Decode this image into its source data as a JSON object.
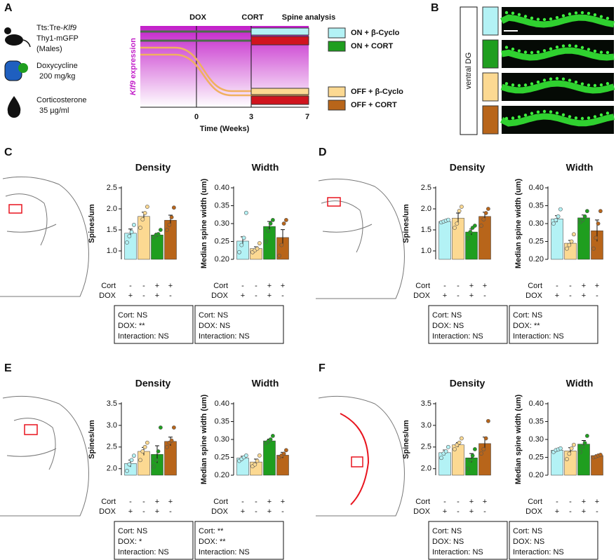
{
  "panels": [
    "A",
    "B",
    "C",
    "D",
    "E",
    "F"
  ],
  "panel_a": {
    "mouse": [
      "Tts:Tre-",
      "Klf9",
      "Thy1-mGFP",
      "(Males)"
    ],
    "doxycycline": [
      "Doxycycline",
      "200 mg/kg"
    ],
    "corticosterone": [
      "Corticosterone",
      "35 µg/ml"
    ],
    "phases": [
      {
        "text": "DOX",
        "color": "#1fb36a"
      },
      {
        "text": "CORT",
        "color": "#e8141e"
      },
      {
        "text": "Spine analysis",
        "color": "#999999"
      }
    ],
    "ylabel": [
      "Klf9",
      " expression"
    ],
    "xticks": [
      0,
      3,
      7
    ],
    "xlabel": "Time (Weeks)",
    "legend": [
      {
        "text": "ON + β-Cyclo",
        "color": "#b3f2f5"
      },
      {
        "text": "ON + CORT",
        "color": "#1f9e1f"
      },
      {
        "text": "OFF + β-Cyclo",
        "color": "#fcd992"
      },
      {
        "text": "OFF + CORT",
        "color": "#b8651a"
      }
    ]
  },
  "panel_b": {
    "label": "ventral DG"
  },
  "chart_data": [
    {
      "type": "bar",
      "title": "Density",
      "ylabel": "Spines/um",
      "ylim": [
        0.8,
        2.5
      ],
      "yticks": [
        {
          "value": 1,
          "label": "1.0"
        },
        1.5,
        {
          "value": 2,
          "label": "2.0"
        },
        2.5
      ],
      "colors": [
        "#b3f2f5",
        "#fcd992",
        "#1f9e1f",
        "#b8651a"
      ],
      "values": [
        1.42,
        1.82,
        1.38,
        1.73
      ],
      "errors": [
        0.1,
        0.1,
        0.04,
        0.12
      ],
      "points": [
        [
          1.2,
          1.35,
          1.45,
          1.62
        ],
        [
          1.55,
          1.75,
          1.9,
          2.05
        ],
        [
          1.33,
          1.38,
          1.4,
          1.5
        ],
        [
          1.5,
          1.62,
          1.8,
          2.03
        ]
      ],
      "rows": [
        {
          "label": "Cort",
          "marks": [
            "-",
            "-",
            "+",
            "+"
          ]
        },
        {
          "label": "DOX",
          "marks": [
            "+",
            "-",
            "+",
            "-"
          ]
        }
      ],
      "stats": [
        "Cort: NS",
        "DOX: **",
        "Interaction: NS"
      ],
      "stats_color": "#111111"
    },
    {
      "type": "bar",
      "title": "Width",
      "ylabel": "Median spine width (um)",
      "ylim": [
        0.2,
        0.4
      ],
      "yticks": [
        {
          "value": 0.2,
          "label": "0.20"
        },
        0.25,
        {
          "value": 0.3,
          "label": "0.30"
        },
        0.35,
        {
          "value": 0.4,
          "label": "0.40"
        }
      ],
      "colors": [
        "#b3f2f5",
        "#fcd992",
        "#1f9e1f",
        "#b8651a"
      ],
      "values": [
        0.251,
        0.23,
        0.292,
        0.261
      ],
      "errors": [
        0.012,
        0.005,
        0.014,
        0.022
      ],
      "points": [
        [
          0.22,
          0.24,
          0.26,
          0.33
        ],
        [
          0.22,
          0.225,
          0.23,
          0.245
        ],
        [
          0.25,
          0.28,
          0.3,
          0.31
        ],
        [
          0.21,
          0.24,
          0.3,
          0.31
        ]
      ],
      "rows": [
        {
          "label": "Cort",
          "marks": [
            "-",
            "-",
            "+",
            "+"
          ]
        },
        {
          "label": "DOX",
          "marks": [
            "+",
            "-",
            "+",
            "-"
          ]
        }
      ],
      "stats": [
        "Cort: NS",
        "DOX: NS",
        "Interaction: NS"
      ],
      "stats_color": "#111111"
    },
    {
      "type": "bar",
      "title": "Density",
      "ylabel": "Spines/um",
      "ylim": [
        0.8,
        2.5
      ],
      "yticks": [
        {
          "value": 1,
          "label": "1.0"
        },
        1.5,
        {
          "value": 2,
          "label": "2.0"
        },
        2.5
      ],
      "colors": [
        "#b3f2f5",
        "#fcd992",
        "#1f9e1f",
        "#b8651a"
      ],
      "values": [
        1.7,
        1.78,
        1.45,
        1.82
      ],
      "errors": [
        0.02,
        0.12,
        0.07,
        0.1
      ],
      "points": [
        [
          1.68,
          1.7,
          1.72,
          1.74
        ],
        [
          1.55,
          1.65,
          1.95,
          2.05
        ],
        [
          1.3,
          1.45,
          1.55,
          1.6
        ],
        [
          1.6,
          1.75,
          1.9,
          2.0
        ]
      ],
      "rows": [
        {
          "label": "Cort",
          "marks": [
            "-",
            "-",
            "+",
            "+"
          ]
        },
        {
          "label": "DOX",
          "marks": [
            "+",
            "-",
            "+",
            "-"
          ]
        }
      ],
      "stats": [
        "Cort: NS",
        "DOX: NS",
        "Interaction: NS"
      ],
      "stats_color": "#111111"
    },
    {
      "type": "bar",
      "title": "Width",
      "ylabel": "Median spine width (um)",
      "ylim": [
        0.2,
        0.4
      ],
      "yticks": [
        {
          "value": 0.2,
          "label": "0.20"
        },
        0.25,
        {
          "value": 0.3,
          "label": "0.30"
        },
        0.35,
        {
          "value": 0.4,
          "label": "0.40"
        }
      ],
      "colors": [
        "#b3f2f5",
        "#fcd992",
        "#1f9e1f",
        "#b8651a"
      ],
      "values": [
        0.313,
        0.245,
        0.316,
        0.28
      ],
      "errors": [
        0.009,
        0.008,
        0.008,
        0.03
      ],
      "points": [
        [
          0.3,
          0.31,
          0.32,
          0.34
        ],
        [
          0.23,
          0.24,
          0.25,
          0.27
        ],
        [
          0.305,
          0.31,
          0.32,
          0.335
        ],
        [
          0.23,
          0.26,
          0.3,
          0.335
        ]
      ],
      "rows": [
        {
          "label": "Cort",
          "marks": [
            "-",
            "-",
            "+",
            "+"
          ]
        },
        {
          "label": "DOX",
          "marks": [
            "+",
            "-",
            "+",
            "-"
          ]
        }
      ],
      "stats": [
        "Cort: NS",
        "DOX: **",
        "Interaction: NS"
      ],
      "stats_color": "#111111"
    },
    {
      "type": "bar",
      "title": "Density",
      "ylabel": "Spines/um",
      "ylim": [
        1.85,
        3.5
      ],
      "yticks": [
        {
          "value": 2,
          "label": "2.0"
        },
        2.5,
        {
          "value": 3,
          "label": "3.0"
        },
        3.5
      ],
      "colors": [
        "#b3f2f5",
        "#fcd992",
        "#1f9e1f",
        "#b8651a"
      ],
      "values": [
        2.12,
        2.4,
        2.33,
        2.63
      ],
      "errors": [
        0.08,
        0.09,
        0.2,
        0.1
      ],
      "points": [
        [
          1.95,
          2.1,
          2.2,
          2.3
        ],
        [
          2.2,
          2.4,
          2.5,
          2.6
        ],
        [
          2.05,
          2.2,
          2.4,
          2.95
        ],
        [
          2.5,
          2.6,
          2.65,
          2.95
        ]
      ],
      "rows": [
        {
          "label": "Cort",
          "marks": [
            "-",
            "-",
            "+",
            "+"
          ]
        },
        {
          "label": "DOX",
          "marks": [
            "+",
            "-",
            "+",
            "-"
          ]
        }
      ],
      "stats": [
        "Cort: NS",
        "DOX: *",
        "Interaction: NS"
      ],
      "stats_color": "#111111"
    },
    {
      "type": "bar",
      "title": "Width",
      "ylabel": "Median spine width (um)",
      "ylim": [
        0.2,
        0.4
      ],
      "yticks": [
        {
          "value": 0.2,
          "label": "0.20"
        },
        0.25,
        {
          "value": 0.3,
          "label": "0.30"
        },
        0.35,
        {
          "value": 0.4,
          "label": "0.40"
        }
      ],
      "colors": [
        "#b3f2f5",
        "#fcd992",
        "#1f9e1f",
        "#b8651a"
      ],
      "values": [
        0.248,
        0.237,
        0.296,
        0.256
      ],
      "errors": [
        0.005,
        0.008,
        0.005,
        0.008
      ],
      "points": [
        [
          0.24,
          0.245,
          0.25,
          0.255
        ],
        [
          0.225,
          0.23,
          0.24,
          0.255
        ],
        [
          0.29,
          0.295,
          0.3,
          0.31
        ],
        [
          0.25,
          0.255,
          0.26,
          0.27
        ]
      ],
      "rows": [
        {
          "label": "Cort",
          "marks": [
            "-",
            "-",
            "+",
            "+"
          ]
        },
        {
          "label": "DOX",
          "marks": [
            "+",
            "-",
            "+",
            "-"
          ]
        }
      ],
      "stats": [
        "Cort: **",
        "DOX: **",
        "Interaction: NS"
      ],
      "stats_color": "#e8141e"
    },
    {
      "type": "bar",
      "title": "Density",
      "ylabel": "Spines/um",
      "ylim": [
        1.85,
        3.5
      ],
      "yticks": [
        {
          "value": 2,
          "label": "2.0"
        },
        2.5,
        {
          "value": 3,
          "label": "3.0"
        },
        3.5
      ],
      "colors": [
        "#b3f2f5",
        "#fcd992",
        "#1f9e1f",
        "#b8651a"
      ],
      "values": [
        2.37,
        2.55,
        2.25,
        2.58
      ],
      "errors": [
        0.06,
        0.05,
        0.1,
        0.15
      ],
      "points": [
        [
          2.25,
          2.35,
          2.4,
          2.5
        ],
        [
          2.45,
          2.55,
          2.6,
          2.7
        ],
        [
          2.0,
          2.2,
          2.3,
          2.45
        ],
        [
          2.35,
          2.45,
          2.7,
          3.1
        ]
      ],
      "rows": [
        {
          "label": "Cort",
          "marks": [
            "-",
            "-",
            "+",
            "+"
          ]
        },
        {
          "label": "DOX",
          "marks": [
            "+",
            "-",
            "+",
            "-"
          ]
        }
      ],
      "stats": [
        "Cort: NS",
        "DOX: NS",
        "Interaction: NS"
      ],
      "stats_color": "#111111"
    },
    {
      "type": "bar",
      "title": "Width",
      "ylabel": "Median spine width (um)",
      "ylim": [
        0.2,
        0.4
      ],
      "yticks": [
        {
          "value": 0.2,
          "label": "0.20"
        },
        0.25,
        {
          "value": 0.3,
          "label": "0.30"
        },
        0.35,
        {
          "value": 0.4,
          "label": "0.40"
        }
      ],
      "colors": [
        "#b3f2f5",
        "#fcd992",
        "#1f9e1f",
        "#b8651a"
      ],
      "values": [
        0.27,
        0.268,
        0.287,
        0.255
      ],
      "errors": [
        0.003,
        0.009,
        0.01,
        0.002
      ],
      "points": [
        [
          0.265,
          0.27,
          0.272,
          0.275
        ],
        [
          0.245,
          0.26,
          0.275,
          0.285
        ],
        [
          0.265,
          0.28,
          0.29,
          0.31
        ],
        [
          0.25,
          0.252,
          0.255,
          0.257
        ]
      ],
      "rows": [
        {
          "label": "Cort",
          "marks": [
            "-",
            "-",
            "+",
            "+"
          ]
        },
        {
          "label": "DOX",
          "marks": [
            "+",
            "-",
            "+",
            "-"
          ]
        }
      ],
      "stats": [
        "Cort: NS",
        "DOX: NS",
        "Interaction: NS"
      ],
      "stats_color": "#111111"
    }
  ]
}
